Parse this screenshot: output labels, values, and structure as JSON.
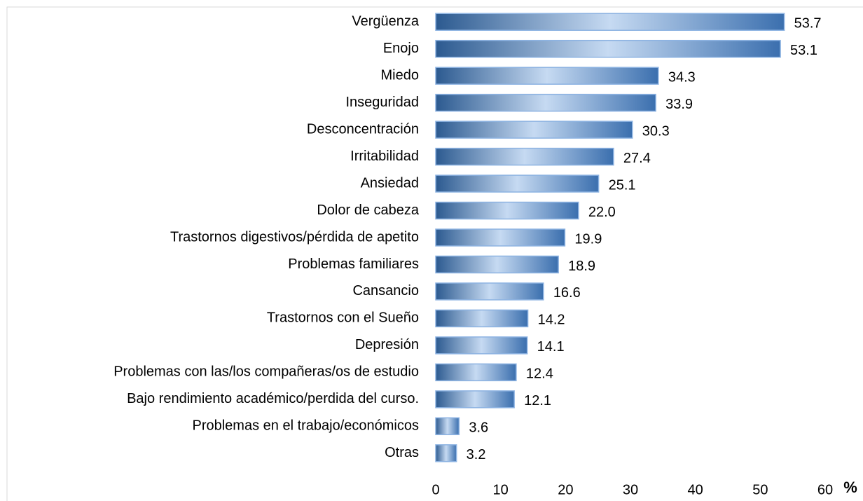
{
  "chart_data": {
    "type": "bar",
    "orientation": "horizontal",
    "categories": [
      "Vergüenza",
      "Enojo",
      "Miedo",
      "Inseguridad",
      "Desconcentración",
      "Irritabilidad",
      "Ansiedad",
      "Dolor de cabeza",
      "Trastornos digestivos/pérdida de apetito",
      "Problemas familiares",
      "Cansancio",
      "Trastornos con el Sueño",
      "Depresión",
      "Problemas con las/los compañeras/os de estudio",
      "Bajo rendimiento académico/perdida del curso.",
      "Problemas en el trabajo/económicos",
      "Otras"
    ],
    "values": [
      53.7,
      53.1,
      34.3,
      33.9,
      30.3,
      27.4,
      25.1,
      22.0,
      19.9,
      18.9,
      16.6,
      14.2,
      14.1,
      12.4,
      12.1,
      3.6,
      3.2
    ],
    "value_labels": [
      "53.7",
      "53.1",
      "34.3",
      "33.9",
      "30.3",
      "27.4",
      "25.1",
      "22.0",
      "19.9",
      "18.9",
      "16.6",
      "14.2",
      "14.1",
      "12.4",
      "12.1",
      "3.6",
      "3.2"
    ],
    "color": "#4f81bd",
    "xlim": [
      0,
      60
    ],
    "xticks": [
      0,
      10,
      20,
      30,
      40,
      50,
      60
    ],
    "x_label": "%",
    "grid": false
  }
}
